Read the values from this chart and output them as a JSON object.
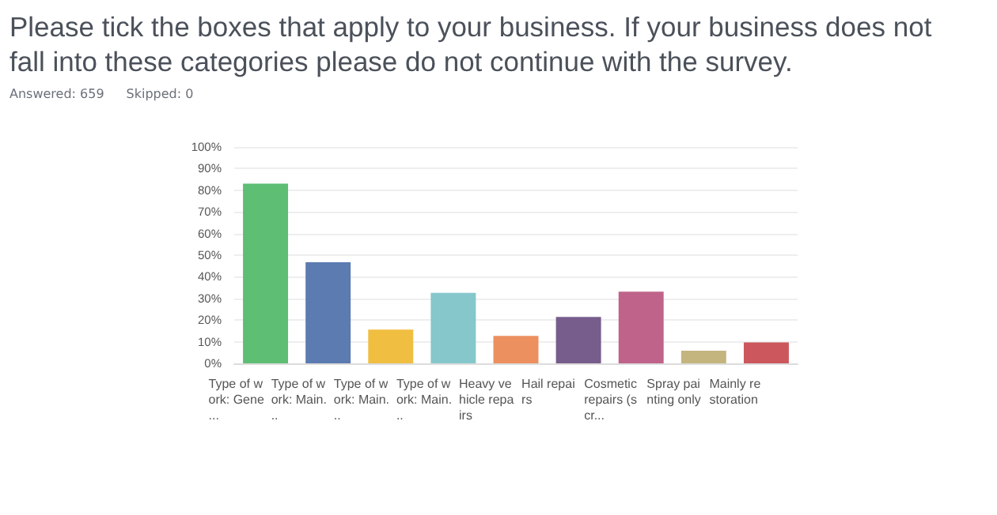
{
  "chart_data": {
    "type": "bar",
    "title": "Please tick the boxes that apply to your business. If your business does not fall into these categories please do not continue with the survey.",
    "annotations": [
      "Answered: 659",
      "Skipped: 0"
    ],
    "categories": [
      "Type of work: Gene...",
      "Type of work: Main...",
      "Type of work: Main...",
      "Type of work: Main...",
      "Heavy vehicle repairs",
      "Hail repairs",
      "Cosmetic repairs (scr...",
      "Spray painting only",
      "Mainly restoration"
    ],
    "values": [
      83,
      46.7,
      15.6,
      32.6,
      12.7,
      21.4,
      33.1,
      5.8,
      9.7
    ],
    "colors": [
      "#5dbe74",
      "#5b7bb1",
      "#f0be41",
      "#86c7cb",
      "#ec9060",
      "#765d8b",
      "#c0638b",
      "#c4b57f",
      "#cc575c"
    ],
    "ylim": [
      0,
      100
    ],
    "yticks": [
      {
        "value": 0,
        "label": "0%"
      },
      {
        "value": 10,
        "label": "10%"
      },
      {
        "value": 20,
        "label": "20%"
      },
      {
        "value": 30,
        "label": "30%"
      },
      {
        "value": 40,
        "label": "40%"
      },
      {
        "value": 50,
        "label": "50%"
      },
      {
        "value": 60,
        "label": "60%"
      },
      {
        "value": 70,
        "label": "70%"
      },
      {
        "value": 80,
        "label": "80%"
      },
      {
        "value": 90,
        "label": "90%"
      },
      {
        "value": 100,
        "label": "100%"
      }
    ],
    "grid": "y"
  }
}
